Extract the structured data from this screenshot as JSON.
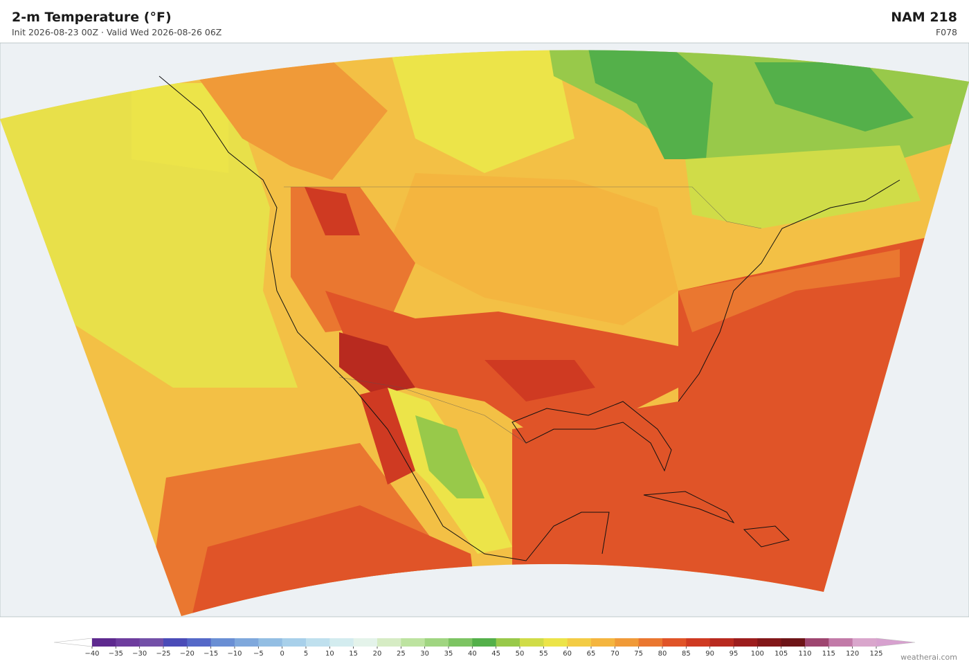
{
  "header": {
    "title": "2-m Temperature  (°F)",
    "subtitle": "Init 2026-08-23 00Z   ·   Valid Wed 2026-08-26 06Z",
    "model": "NAM  218",
    "forecast": "F078"
  },
  "colorbar": {
    "ticks": [
      {
        "value": -40,
        "label": "−40"
      },
      {
        "value": -35,
        "label": "−35"
      },
      {
        "value": -30,
        "label": "−30"
      },
      {
        "value": -25,
        "label": "−25"
      },
      {
        "value": -20,
        "label": "−20"
      },
      {
        "value": -15,
        "label": "−15"
      },
      {
        "value": -10,
        "label": "−10"
      },
      {
        "value": -5,
        "label": "−5"
      },
      0,
      5,
      10,
      15,
      20,
      25,
      30,
      35,
      40,
      45,
      50,
      55,
      60,
      65,
      70,
      75,
      80,
      85,
      90,
      95,
      100,
      105,
      110,
      115,
      120,
      125
    ],
    "colors": [
      "#5e2a8f",
      "#6e3d9e",
      "#7350a8",
      "#4b4cb8",
      "#5569c8",
      "#6a8fd4",
      "#7fa8dc",
      "#93bee3",
      "#a8d0ea",
      "#bfe0ee",
      "#d3ecef",
      "#e4f3ea",
      "#d6ecc4",
      "#bde3a0",
      "#a0d581",
      "#7dc463",
      "#54b04a",
      "#98c94a",
      "#d0dc48",
      "#ece449",
      "#f3cc45",
      "#f4b53f",
      "#f09a38",
      "#ea7730",
      "#e05428",
      "#cf3a22",
      "#b82a1f",
      "#9c1d1d",
      "#821719",
      "#6e1518",
      "#9e4670",
      "#c27aa8",
      "#d9a6cc"
    ],
    "under_color": "#ffffff",
    "over_color": "#d7a1cf"
  },
  "credit": "weatherai.com"
}
